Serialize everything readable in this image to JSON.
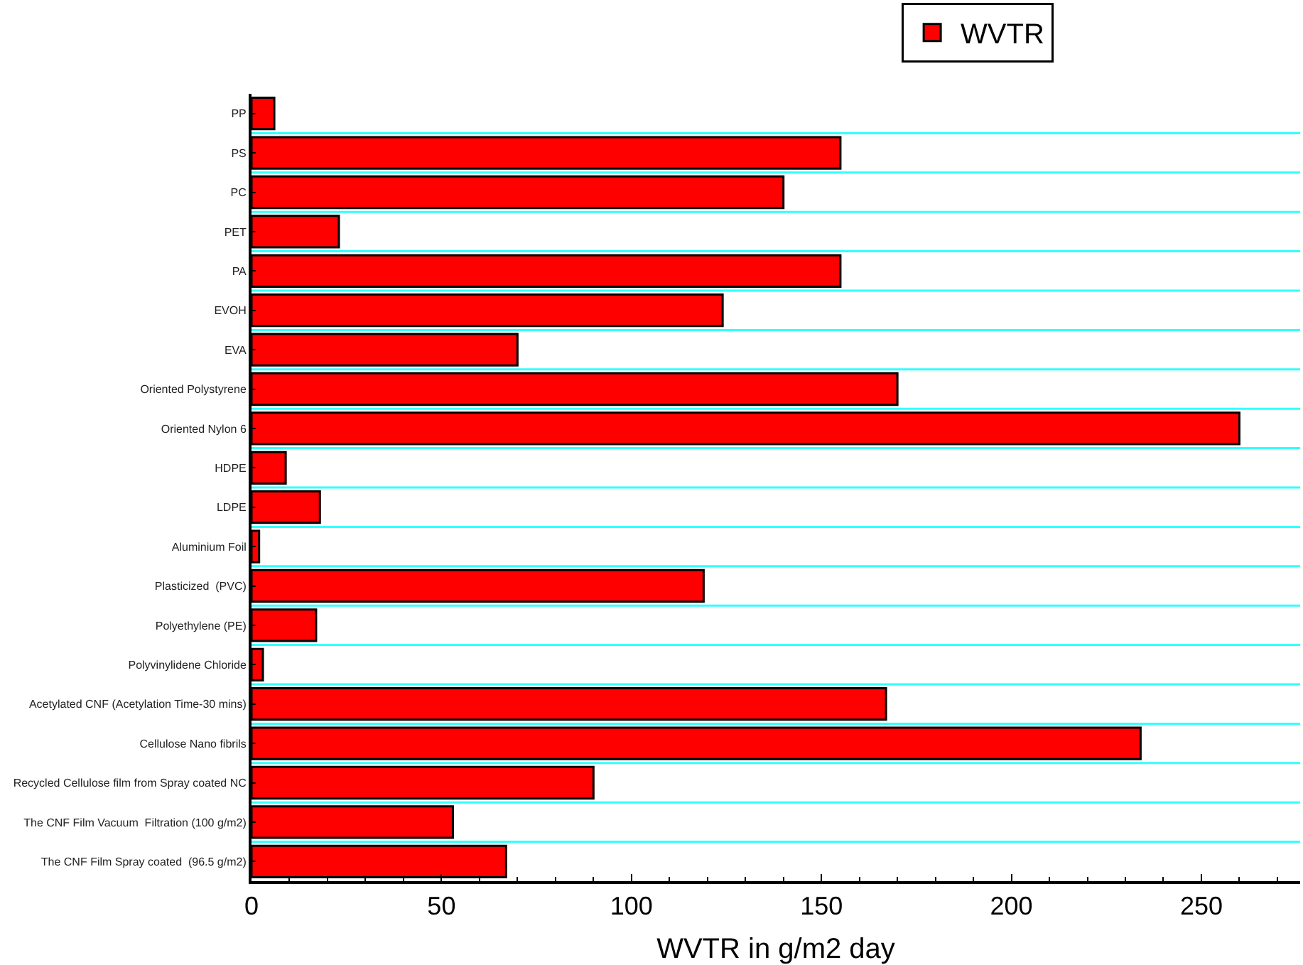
{
  "chart_data": {
    "type": "bar",
    "orientation": "horizontal",
    "xlabel": "WVTR in g/m2 day",
    "categories": [
      "PP",
      "PS",
      "PC",
      "PET",
      "PA",
      "EVOH",
      "EVA",
      "Oriented Polystyrene",
      "Oriented Nylon 6",
      "HDPE",
      "LDPE",
      "Aluminium Foil",
      "Plasticized  (PVC)",
      "Polyethylene (PE)",
      "Polyvinylidene Chloride",
      "Acetylated CNF (Acetylation Time-30 mins)",
      "Cellulose Nano fibrils",
      "Recycled Cellulose film from Spray coated NC",
      "The CNF Film Vacuum  Filtration (100 g/m2)",
      "The CNF Film Spray coated  (96.5 g/m2)"
    ],
    "series": [
      {
        "name": "WVTR",
        "color": "#ff0000",
        "values": [
          6,
          155,
          140,
          23,
          155,
          124,
          70,
          170,
          260,
          9,
          18,
          2,
          119,
          17,
          3,
          167,
          234,
          90,
          53,
          67
        ]
      }
    ],
    "xlim": [
      0,
      276
    ],
    "xticks": [
      0,
      50,
      100,
      150,
      200,
      250
    ],
    "grid": "y",
    "legend": "top"
  }
}
